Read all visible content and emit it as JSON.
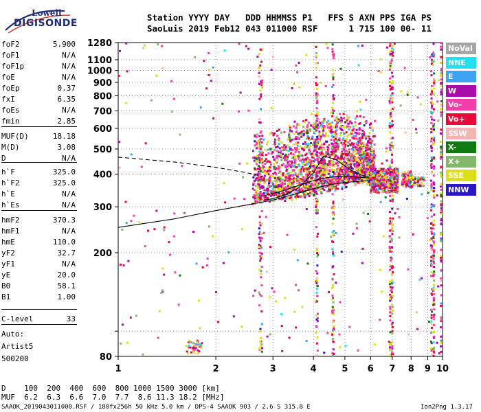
{
  "logo": {
    "line1": "Lowell",
    "line2": "DIGISONDE"
  },
  "header": {
    "line1": "Station YYYY DAY   DDD HHMMSS P1   FFS S AXN PPS IGA PS",
    "line2": "SaoLuis 2019 Feb12 043 011000 RSF      1 715 100 00- 11"
  },
  "params": [
    {
      "k": "foF2",
      "v": "5.900"
    },
    {
      "k": "foF1",
      "v": "N/A"
    },
    {
      "k": "foF1p",
      "v": "N/A"
    },
    {
      "k": "foE",
      "v": "N/A"
    },
    {
      "k": "foEp",
      "v": "0.37"
    },
    {
      "k": "fxI",
      "v": "6.35"
    },
    {
      "k": "foEs",
      "v": "N/A"
    },
    {
      "k": "fmin",
      "v": "2.85"
    },
    {
      "k": "MUF(D)",
      "v": "18.18"
    },
    {
      "k": "M(D)",
      "v": "3.08"
    },
    {
      "k": "D",
      "v": "N/A"
    },
    {
      "k": "h`F",
      "v": "325.0"
    },
    {
      "k": "h`F2",
      "v": "325.0"
    },
    {
      "k": "h`E",
      "v": "N/A"
    },
    {
      "k": "h`Es",
      "v": "N/A"
    },
    {
      "k": "hmF2",
      "v": "370.3"
    },
    {
      "k": "hmF1",
      "v": "N/A"
    },
    {
      "k": "hmE",
      "v": "110.0"
    },
    {
      "k": "yF2",
      "v": "32.7"
    },
    {
      "k": "yF1",
      "v": "N/A"
    },
    {
      "k": "yE",
      "v": "20.0"
    },
    {
      "k": "B0",
      "v": "58.1"
    },
    {
      "k": "B1",
      "v": "1.00"
    },
    {
      "k": "C-level",
      "v": "33"
    },
    {
      "k": "Auto:",
      "v": ""
    },
    {
      "k": "Artist5",
      "v": ""
    },
    {
      "k": "500200",
      "v": ""
    }
  ],
  "legend": [
    {
      "label": "NoVal",
      "color": "#a6a6a6"
    },
    {
      "label": "NNE",
      "color": "#1ee3ee"
    },
    {
      "label": "E",
      "color": "#3ba3f2"
    },
    {
      "label": "W",
      "color": "#a90ca9"
    },
    {
      "label": "Vo-",
      "color": "#f23ea8"
    },
    {
      "label": "Vo+",
      "color": "#e8083c"
    },
    {
      "label": "SSW",
      "color": "#f5b3b3"
    },
    {
      "label": "X-",
      "color": "#107a10"
    },
    {
      "label": "X+",
      "color": "#83b86a"
    },
    {
      "label": "SSE",
      "color": "#dede1b"
    },
    {
      "label": "NNW",
      "color": "#2a17c9"
    }
  ],
  "footer": {
    "d_line": "D    100  200  400  600  800 1000 1500 3000 [km]",
    "muf_line": "MUF  6.2  6.3  6.6  7.0  7.7  8.6 11.3 18.2 [MHz]",
    "file_line": "SAAOK_2019043011000.RSF / 180fx256h 50 kHz 5.0 km / DPS-4 SAAOK 903 / 2.6 S 315.8 E",
    "version": "Ion2Png 1.3.17"
  },
  "chart_data": {
    "type": "scatter",
    "title": "",
    "xlabel": "",
    "ylabel": "",
    "x_scale": "log",
    "y_scale": "log",
    "xlim": [
      1,
      10
    ],
    "ylim": [
      80,
      1280
    ],
    "x_ticks": [
      1,
      2,
      3,
      4,
      5,
      6,
      7,
      8,
      9,
      10
    ],
    "y_ticks": [
      80,
      100,
      200,
      300,
      400,
      500,
      600,
      700,
      800,
      900,
      1000,
      1100,
      1280
    ],
    "y_tick_labels": [
      "80",
      "",
      "200",
      "300",
      "400",
      "500",
      "600",
      "700",
      "800",
      "900",
      "1000",
      "1100",
      "1280"
    ],
    "grid": true,
    "legend_placement": "right",
    "series": [
      {
        "name": "",
        "style": "dashed",
        "x": [
          1.0,
          1.5,
          2.0,
          2.5,
          2.8
        ],
        "y": [
          465,
          445,
          425,
          405,
          392
        ]
      },
      {
        "name": "",
        "style": "solid",
        "x": [
          1.0,
          1.5,
          2.0,
          2.5,
          3.0,
          3.5,
          4.0,
          4.5,
          5.0,
          5.5,
          6.0
        ],
        "y": [
          250,
          270,
          290,
          305,
          318,
          335,
          352,
          365,
          372,
          376,
          378
        ]
      },
      {
        "name": "",
        "style": "solid",
        "x": [
          2.8,
          3.0,
          3.3,
          3.6,
          4.0,
          4.3,
          4.7,
          5.0,
          5.3,
          5.6,
          5.9
        ],
        "y": [
          318,
          322,
          335,
          355,
          405,
          470,
          455,
          430,
          410,
          398,
          390
        ]
      },
      {
        "name": "",
        "style": "solid",
        "x": [
          2.8,
          3.2,
          3.6,
          4.0,
          4.4,
          4.8,
          5.2,
          5.6,
          5.9
        ],
        "y": [
          330,
          345,
          362,
          378,
          388,
          393,
          392,
          389,
          387
        ]
      }
    ]
  }
}
